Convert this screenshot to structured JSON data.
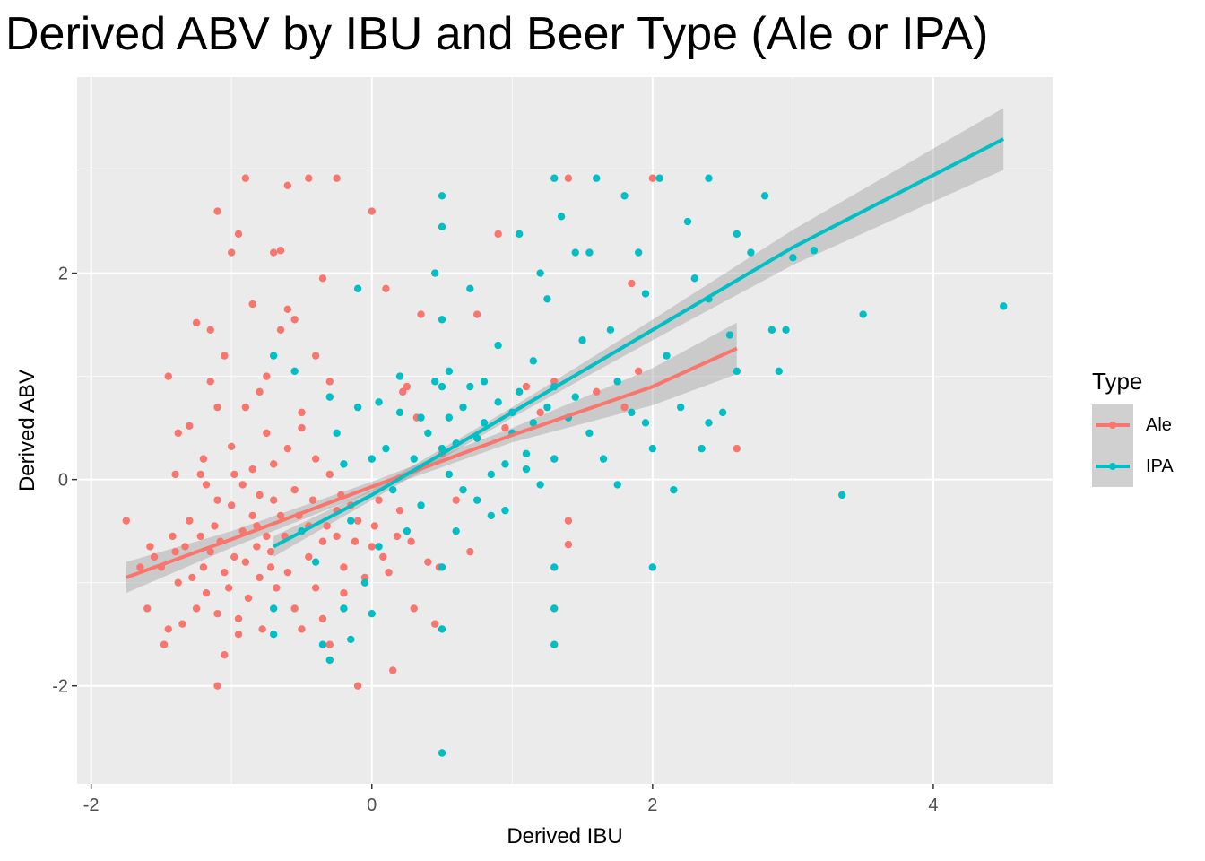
{
  "chart_data": {
    "type": "scatter",
    "title": "Derived ABV by IBU and Beer Type (Ale or IPA)",
    "xlabel": "Derived IBU",
    "ylabel": "Derived ABV",
    "xlim": [
      -2.1,
      4.85
    ],
    "ylim": [
      -2.95,
      3.9
    ],
    "x_ticks": [
      -2,
      0,
      2,
      4
    ],
    "y_ticks": [
      -2,
      0,
      2
    ],
    "x_tick_labels": [
      "-2",
      "0",
      "2",
      "4"
    ],
    "y_tick_labels": [
      "-2",
      "0",
      "2"
    ],
    "grid": true,
    "legend": {
      "title": "Type",
      "position": "right"
    },
    "series": [
      {
        "name": "Ale",
        "color": "#F8766D",
        "points": [
          [
            -1.75,
            -0.4
          ],
          [
            -1.65,
            -0.85
          ],
          [
            -1.6,
            -1.25
          ],
          [
            -1.58,
            -0.65
          ],
          [
            -1.55,
            -0.75
          ],
          [
            -1.5,
            -0.85
          ],
          [
            -1.48,
            -1.6
          ],
          [
            -1.45,
            -1.45
          ],
          [
            -1.42,
            -0.55
          ],
          [
            -1.4,
            -0.7
          ],
          [
            -1.4,
            0.05
          ],
          [
            -1.38,
            -1.0
          ],
          [
            -1.35,
            -1.4
          ],
          [
            -1.33,
            -0.65
          ],
          [
            -1.3,
            -0.4
          ],
          [
            -1.28,
            -0.95
          ],
          [
            -1.25,
            -1.25
          ],
          [
            -1.22,
            -0.55
          ],
          [
            -1.2,
            -0.85
          ],
          [
            -1.18,
            -1.1
          ],
          [
            -1.15,
            -0.7
          ],
          [
            -1.12,
            -0.45
          ],
          [
            -1.1,
            -1.3
          ],
          [
            -1.08,
            -0.6
          ],
          [
            -1.05,
            -0.9
          ],
          [
            -1.02,
            -1.05
          ],
          [
            -1.0,
            -0.25
          ],
          [
            -0.98,
            -0.75
          ],
          [
            -0.95,
            -1.35
          ],
          [
            -0.92,
            -0.5
          ],
          [
            -0.9,
            -0.8
          ],
          [
            -0.88,
            -1.15
          ],
          [
            -0.85,
            -0.35
          ],
          [
            -0.82,
            -0.65
          ],
          [
            -0.8,
            -0.95
          ],
          [
            -0.78,
            -1.45
          ],
          [
            -0.75,
            -0.55
          ],
          [
            -0.72,
            -0.85
          ],
          [
            -0.7,
            -0.2
          ],
          [
            -0.68,
            -1.05
          ],
          [
            -1.25,
            1.52
          ],
          [
            -1.15,
            1.45
          ],
          [
            -1.1,
            2.6
          ],
          [
            -1.05,
            1.2
          ],
          [
            -1.0,
            2.2
          ],
          [
            -0.95,
            2.38
          ],
          [
            -0.9,
            2.92
          ],
          [
            -0.85,
            1.7
          ],
          [
            -0.8,
            0.85
          ],
          [
            -0.75,
            1.0
          ],
          [
            -0.7,
            2.2
          ],
          [
            -0.65,
            2.22
          ],
          [
            -0.6,
            2.85
          ],
          [
            -0.55,
            1.55
          ],
          [
            -0.5,
            0.5
          ],
          [
            -0.45,
            2.92
          ],
          [
            -0.4,
            1.2
          ],
          [
            -0.35,
            1.95
          ],
          [
            -0.3,
            0.95
          ],
          [
            -0.25,
            2.92
          ],
          [
            -1.3,
            0.52
          ],
          [
            -1.2,
            0.2
          ],
          [
            -1.1,
            -0.2
          ],
          [
            -1.0,
            0.32
          ],
          [
            -0.9,
            0.7
          ],
          [
            -0.85,
            0.1
          ],
          [
            -0.8,
            -0.15
          ],
          [
            -0.75,
            0.45
          ],
          [
            -0.7,
            0.15
          ],
          [
            -0.65,
            -0.35
          ],
          [
            -0.6,
            0.3
          ],
          [
            -0.55,
            -0.1
          ],
          [
            -0.5,
            0.65
          ],
          [
            -0.45,
            -0.45
          ],
          [
            -0.4,
            0.2
          ],
          [
            -0.35,
            -0.6
          ],
          [
            -0.3,
            0.05
          ],
          [
            -0.25,
            -0.3
          ],
          [
            -0.2,
            -0.85
          ],
          [
            -0.15,
            -0.25
          ],
          [
            -0.6,
            -0.9
          ],
          [
            -0.55,
            -1.25
          ],
          [
            -0.5,
            -1.45
          ],
          [
            -0.45,
            -0.75
          ],
          [
            -0.4,
            -1.05
          ],
          [
            -0.35,
            -1.35
          ],
          [
            -0.3,
            -1.6
          ],
          [
            -0.25,
            -0.55
          ],
          [
            -0.2,
            -1.1
          ],
          [
            -0.1,
            -2.0
          ],
          [
            -0.1,
            -0.4
          ],
          [
            0.0,
            -0.65
          ],
          [
            0.0,
            2.6
          ],
          [
            0.05,
            -0.2
          ],
          [
            0.1,
            1.85
          ],
          [
            0.12,
            -0.9
          ],
          [
            0.15,
            -1.85
          ],
          [
            0.2,
            -0.3
          ],
          [
            0.25,
            0.9
          ],
          [
            0.28,
            -0.6
          ],
          [
            0.3,
            -1.25
          ],
          [
            0.35,
            1.6
          ],
          [
            0.4,
            -0.8
          ],
          [
            0.45,
            -1.4
          ],
          [
            0.48,
            -0.85
          ],
          [
            0.5,
            0.25
          ],
          [
            0.6,
            -0.2
          ],
          [
            0.7,
            -0.7
          ],
          [
            0.75,
            1.6
          ],
          [
            0.9,
            2.38
          ],
          [
            0.95,
            0.5
          ],
          [
            1.1,
            0.9
          ],
          [
            1.2,
            0.65
          ],
          [
            1.3,
            0.95
          ],
          [
            1.4,
            2.92
          ],
          [
            1.4,
            -0.4
          ],
          [
            1.4,
            -0.63
          ],
          [
            1.6,
            0.85
          ],
          [
            1.8,
            0.7
          ],
          [
            1.85,
            1.9
          ],
          [
            1.9,
            1.05
          ],
          [
            2.0,
            2.92
          ],
          [
            2.6,
            0.3
          ],
          [
            -1.1,
            -2.0
          ],
          [
            -1.05,
            -1.7
          ],
          [
            -1.15,
            0.95
          ],
          [
            -1.1,
            0.7
          ],
          [
            -0.95,
            -1.5
          ],
          [
            -0.65,
            1.45
          ],
          [
            -0.6,
            1.65
          ],
          [
            -1.45,
            1.0
          ],
          [
            -1.38,
            0.45
          ],
          [
            -1.22,
            0.05
          ],
          [
            -1.18,
            -0.05
          ],
          [
            -0.98,
            0.05
          ],
          [
            -0.92,
            -0.05
          ],
          [
            -0.82,
            -0.45
          ],
          [
            -0.72,
            -0.7
          ],
          [
            -0.62,
            -0.55
          ],
          [
            -0.52,
            -0.35
          ],
          [
            -0.42,
            -0.2
          ],
          [
            -0.32,
            -0.45
          ],
          [
            -0.22,
            -0.15
          ],
          [
            -0.12,
            -0.6
          ],
          [
            -0.05,
            -0.95
          ],
          [
            0.02,
            -0.45
          ],
          [
            0.08,
            -0.75
          ],
          [
            0.18,
            -0.55
          ],
          [
            0.22,
            0.85
          ],
          [
            0.32,
            0.6
          ]
        ],
        "fit_line": [
          [
            -1.75,
            -0.95
          ],
          [
            -1.0,
            -0.58
          ],
          [
            0.0,
            -0.07
          ],
          [
            1.0,
            0.43
          ],
          [
            2.0,
            0.9
          ],
          [
            2.6,
            1.27
          ]
        ],
        "fit_band_upper": [
          [
            -1.75,
            -0.8
          ],
          [
            -1.0,
            -0.5
          ],
          [
            0.0,
            -0.02
          ],
          [
            1.0,
            0.5
          ],
          [
            2.0,
            1.08
          ],
          [
            2.6,
            1.52
          ]
        ],
        "fit_band_lower": [
          [
            -1.75,
            -1.1
          ],
          [
            -1.0,
            -0.66
          ],
          [
            0.0,
            -0.12
          ],
          [
            1.0,
            0.36
          ],
          [
            2.0,
            0.72
          ],
          [
            2.6,
            1.02
          ]
        ]
      },
      {
        "name": "IPA",
        "color": "#00BFC4",
        "points": [
          [
            -0.7,
            1.2
          ],
          [
            -0.7,
            -1.25
          ],
          [
            -0.7,
            -1.5
          ],
          [
            -0.55,
            1.05
          ],
          [
            -0.5,
            -0.5
          ],
          [
            -0.4,
            -0.8
          ],
          [
            -0.35,
            -1.6
          ],
          [
            -0.3,
            -1.75
          ],
          [
            -0.25,
            0.45
          ],
          [
            -0.2,
            -1.25
          ],
          [
            -0.15,
            -1.55
          ],
          [
            -0.1,
            0.7
          ],
          [
            -0.1,
            1.85
          ],
          [
            -0.05,
            -1.0
          ],
          [
            0.0,
            0.2
          ],
          [
            0.0,
            -1.3
          ],
          [
            0.05,
            0.75
          ],
          [
            0.1,
            0.3
          ],
          [
            0.15,
            -0.1
          ],
          [
            0.2,
            0.65
          ],
          [
            0.25,
            -0.5
          ],
          [
            0.3,
            0.2
          ],
          [
            0.35,
            -0.25
          ],
          [
            0.4,
            0.45
          ],
          [
            0.45,
            2.0
          ],
          [
            0.5,
            2.75
          ],
          [
            0.5,
            -2.65
          ],
          [
            0.5,
            -1.45
          ],
          [
            0.5,
            -0.85
          ],
          [
            0.5,
            0.3
          ],
          [
            0.5,
            0.9
          ],
          [
            0.5,
            1.55
          ],
          [
            0.5,
            2.45
          ],
          [
            0.55,
            0.05
          ],
          [
            0.6,
            -0.5
          ],
          [
            0.65,
            0.7
          ],
          [
            0.7,
            1.85
          ],
          [
            0.75,
            0.4
          ],
          [
            0.8,
            0.95
          ],
          [
            0.85,
            -0.35
          ],
          [
            0.9,
            1.3
          ],
          [
            0.95,
            0.15
          ],
          [
            1.0,
            0.65
          ],
          [
            1.05,
            2.38
          ],
          [
            1.1,
            0.1
          ],
          [
            1.15,
            1.15
          ],
          [
            1.2,
            2.0
          ],
          [
            1.25,
            1.75
          ],
          [
            1.3,
            -1.6
          ],
          [
            1.3,
            -1.25
          ],
          [
            1.3,
            -0.85
          ],
          [
            1.3,
            0.2
          ],
          [
            1.3,
            0.9
          ],
          [
            1.3,
            2.92
          ],
          [
            1.35,
            2.55
          ],
          [
            1.4,
            0.6
          ],
          [
            1.45,
            2.2
          ],
          [
            1.5,
            1.35
          ],
          [
            1.55,
            2.2
          ],
          [
            1.6,
            2.92
          ],
          [
            1.65,
            0.2
          ],
          [
            1.7,
            1.45
          ],
          [
            1.75,
            -0.05
          ],
          [
            1.8,
            2.75
          ],
          [
            1.85,
            0.65
          ],
          [
            1.9,
            2.2
          ],
          [
            1.95,
            1.8
          ],
          [
            2.0,
            -0.85
          ],
          [
            2.0,
            0.3
          ],
          [
            2.05,
            2.92
          ],
          [
            2.1,
            1.2
          ],
          [
            2.15,
            -0.1
          ],
          [
            2.2,
            0.7
          ],
          [
            2.25,
            2.5
          ],
          [
            2.3,
            1.95
          ],
          [
            2.35,
            0.3
          ],
          [
            2.4,
            2.92
          ],
          [
            2.4,
            0.55
          ],
          [
            2.4,
            1.75
          ],
          [
            2.5,
            0.65
          ],
          [
            2.55,
            1.4
          ],
          [
            2.6,
            2.38
          ],
          [
            2.6,
            1.05
          ],
          [
            2.7,
            2.2
          ],
          [
            2.8,
            2.75
          ],
          [
            2.85,
            1.45
          ],
          [
            2.9,
            1.05
          ],
          [
            2.95,
            1.45
          ],
          [
            3.0,
            2.15
          ],
          [
            3.15,
            2.22
          ],
          [
            3.35,
            -0.15
          ],
          [
            3.5,
            1.6
          ],
          [
            4.5,
            1.68
          ],
          [
            0.55,
            0.6
          ],
          [
            0.6,
            0.35
          ],
          [
            0.65,
            -0.1
          ],
          [
            0.7,
            0.9
          ],
          [
            0.75,
            -0.2
          ],
          [
            0.8,
            0.55
          ],
          [
            0.85,
            0.05
          ],
          [
            0.9,
            0.75
          ],
          [
            0.95,
            -0.3
          ],
          [
            1.0,
            0.45
          ],
          [
            1.05,
            0.85
          ],
          [
            1.1,
            0.25
          ],
          [
            1.15,
            0.55
          ],
          [
            1.2,
            -0.05
          ],
          [
            1.25,
            0.7
          ],
          [
            -0.3,
            0.8
          ],
          [
            -0.2,
            0.15
          ],
          [
            -0.15,
            -0.4
          ],
          [
            0.05,
            -0.65
          ],
          [
            0.2,
            1.0
          ],
          [
            0.35,
            0.6
          ],
          [
            0.45,
            0.95
          ],
          [
            0.55,
            1.05
          ],
          [
            1.45,
            0.8
          ],
          [
            1.55,
            0.45
          ],
          [
            1.75,
            0.95
          ],
          [
            1.95,
            0.55
          ]
        ],
        "fit_line": [
          [
            -0.7,
            -0.65
          ],
          [
            0.0,
            -0.15
          ],
          [
            1.0,
            0.65
          ],
          [
            2.0,
            1.45
          ],
          [
            3.0,
            2.25
          ],
          [
            4.5,
            3.3
          ]
        ],
        "fit_band_upper": [
          [
            -0.7,
            -0.55
          ],
          [
            0.0,
            -0.1
          ],
          [
            1.0,
            0.7
          ],
          [
            2.0,
            1.55
          ],
          [
            3.0,
            2.42
          ],
          [
            4.5,
            3.6
          ]
        ],
        "fit_band_lower": [
          [
            -0.7,
            -0.75
          ],
          [
            0.0,
            -0.2
          ],
          [
            1.0,
            0.6
          ],
          [
            2.0,
            1.35
          ],
          [
            3.0,
            2.08
          ],
          [
            4.5,
            3.0
          ]
        ]
      }
    ]
  }
}
